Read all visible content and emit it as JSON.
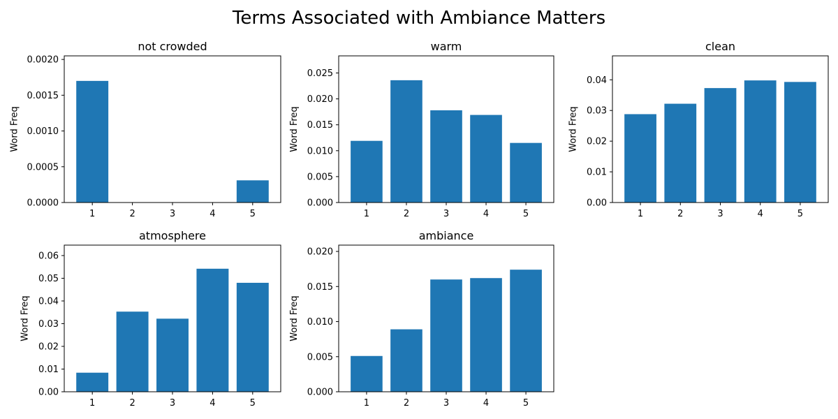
{
  "figure": {
    "title": "Terms Associated with Ambiance Matters",
    "bar_color": "#1f77b4"
  },
  "chart_data": [
    {
      "type": "bar",
      "title": "not crowded",
      "categories": [
        "1",
        "2",
        "3",
        "4",
        "5"
      ],
      "values": [
        0.0017,
        0.0,
        0.0,
        0.0,
        0.00031
      ],
      "ylabel": "Word Freq",
      "ylim": [
        0,
        0.00205
      ],
      "yticks": [
        0.0,
        0.0005,
        0.001,
        0.0015,
        0.002
      ],
      "ytick_labels": [
        "0.0000",
        "0.0005",
        "0.0010",
        "0.0015",
        "0.0020"
      ]
    },
    {
      "type": "bar",
      "title": "warm",
      "categories": [
        "1",
        "2",
        "3",
        "4",
        "5"
      ],
      "values": [
        0.0119,
        0.0236,
        0.0178,
        0.0169,
        0.0115
      ],
      "ylabel": "Word Freq",
      "ylim": [
        0,
        0.0283
      ],
      "yticks": [
        0.0,
        0.005,
        0.01,
        0.015,
        0.02,
        0.025
      ],
      "ytick_labels": [
        "0.000",
        "0.005",
        "0.010",
        "0.015",
        "0.020",
        "0.025"
      ]
    },
    {
      "type": "bar",
      "title": "clean",
      "categories": [
        "1",
        "2",
        "3",
        "4",
        "5"
      ],
      "values": [
        0.0288,
        0.0322,
        0.0373,
        0.0398,
        0.0393
      ],
      "ylabel": "Word Freq",
      "ylim": [
        0,
        0.0478
      ],
      "yticks": [
        0.0,
        0.01,
        0.02,
        0.03,
        0.04
      ],
      "ytick_labels": [
        "0.00",
        "0.01",
        "0.02",
        "0.03",
        "0.04"
      ]
    },
    {
      "type": "bar",
      "title": "atmosphere",
      "categories": [
        "1",
        "2",
        "3",
        "4",
        "5"
      ],
      "values": [
        0.0084,
        0.0353,
        0.0322,
        0.0542,
        0.048
      ],
      "ylabel": "Word Freq",
      "ylim": [
        0,
        0.0646
      ],
      "yticks": [
        0.0,
        0.01,
        0.02,
        0.03,
        0.04,
        0.05,
        0.06
      ],
      "ytick_labels": [
        "0.00",
        "0.01",
        "0.02",
        "0.03",
        "0.04",
        "0.05",
        "0.06"
      ]
    },
    {
      "type": "bar",
      "title": "ambiance",
      "categories": [
        "1",
        "2",
        "3",
        "4",
        "5"
      ],
      "values": [
        0.0051,
        0.0089,
        0.016,
        0.0162,
        0.0174
      ],
      "ylabel": "Word Freq",
      "ylim": [
        0,
        0.0209
      ],
      "yticks": [
        0.0,
        0.005,
        0.01,
        0.015,
        0.02
      ],
      "ytick_labels": [
        "0.000",
        "0.005",
        "0.010",
        "0.015",
        "0.020"
      ]
    }
  ]
}
